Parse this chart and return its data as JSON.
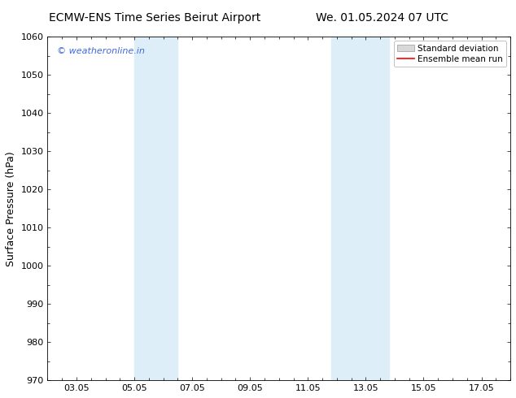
{
  "title_left": "ECMW-ENS Time Series Beirut Airport",
  "title_right": "We. 01.05.2024 07 UTC",
  "ylabel": "Surface Pressure (hPa)",
  "ylim": [
    970,
    1060
  ],
  "yticks": [
    970,
    980,
    990,
    1000,
    1010,
    1020,
    1030,
    1040,
    1050,
    1060
  ],
  "xtick_labels": [
    "03.05",
    "05.05",
    "07.05",
    "09.05",
    "11.05",
    "13.05",
    "15.05",
    "17.05"
  ],
  "xtick_positions": [
    2,
    4,
    6,
    8,
    10,
    12,
    14,
    16
  ],
  "xlim": [
    1,
    17
  ],
  "shaded_bands": [
    {
      "x_start": 4.0,
      "x_end": 5.5
    },
    {
      "x_start": 10.8,
      "x_end": 12.8
    }
  ],
  "shade_color": "#ddeef8",
  "background_color": "#ffffff",
  "watermark_text": "© weatheronline.in",
  "watermark_color": "#4169e1",
  "legend_std_color": "#d8d8d8",
  "legend_std_edge": "#999999",
  "legend_mean_color": "#ff0000",
  "title_fontsize": 10,
  "ylabel_fontsize": 9,
  "tick_fontsize": 8,
  "watermark_fontsize": 8,
  "legend_fontsize": 7.5
}
